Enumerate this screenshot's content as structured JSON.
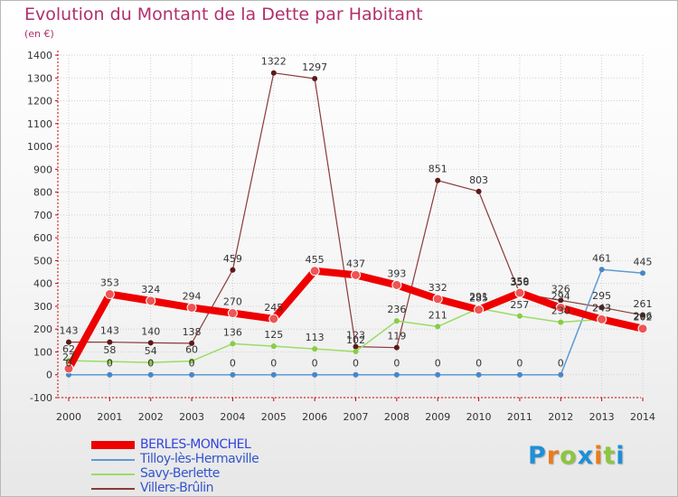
{
  "title": "Evolution du Montant de la Dette par Habitant",
  "subtitle": "(en €)",
  "logo": {
    "text": "Proxiti",
    "letter_colors": [
      "#1f8fd6",
      "#e87c1e",
      "#8cc63f",
      "#1f8fd6",
      "#e87c1e",
      "#8cc63f",
      "#1f8fd6"
    ]
  },
  "chart_data": {
    "type": "line",
    "title": "Evolution du Montant de la Dette par Habitant",
    "ylabel": "(en €)",
    "xlabel": "",
    "x": [
      "2000",
      "2001",
      "2002",
      "2003",
      "2004",
      "2005",
      "2006",
      "2007",
      "2008",
      "2009",
      "2010",
      "2011",
      "2012",
      "2013",
      "2014"
    ],
    "ylim": [
      -100,
      1400
    ],
    "yticks": [
      "-100",
      "0",
      "100",
      "200",
      "300",
      "400",
      "500",
      "600",
      "700",
      "800",
      "900",
      "1000",
      "1100",
      "1200",
      "1300",
      "1400"
    ],
    "grid": true,
    "legend_position": "bottom-left",
    "series": [
      {
        "name": "BERLES-MONCHEL",
        "color": "#ee0000",
        "values": [
          27,
          353,
          324,
          294,
          270,
          245,
          455,
          437,
          393,
          332,
          285,
          359,
          294,
          243,
          202
        ],
        "labels": [
          "27",
          "353",
          "324",
          "294",
          "270",
          "245",
          "455",
          "437",
          "393",
          "332",
          "285",
          "359",
          "294",
          "243",
          "202"
        ]
      },
      {
        "name": "Tilloy-lès-Hermaville",
        "color": "#5b9bd5",
        "values": [
          0,
          0,
          0,
          0,
          0,
          0,
          0,
          0,
          0,
          0,
          0,
          0,
          0,
          461,
          445
        ],
        "labels": [
          "0",
          "0",
          "0",
          "0",
          "0",
          "0",
          "0",
          "0",
          "0",
          "0",
          "0",
          "0",
          "0",
          "461",
          "445"
        ]
      },
      {
        "name": "Savy-Berlette",
        "color": "#99dd66",
        "values": [
          62,
          58,
          54,
          60,
          136,
          125,
          113,
          102,
          236,
          211,
          291,
          257,
          230,
          243,
          206
        ],
        "labels": [
          "62",
          "58",
          "54",
          "60",
          "136",
          "125",
          "113",
          "102",
          "236",
          "211",
          "291",
          "257",
          "230",
          "243",
          "206"
        ]
      },
      {
        "name": "Villers-Brûlin",
        "color": "#8a3a3a",
        "values": [
          143,
          143,
          140,
          138,
          459,
          1322,
          1297,
          123,
          119,
          851,
          803,
          356,
          326,
          295,
          261
        ],
        "labels": [
          "143",
          "143",
          "140",
          "138",
          "459",
          "1322",
          "1297",
          "123",
          "119",
          "851",
          "803",
          "356",
          "326",
          "295",
          "261"
        ]
      }
    ]
  }
}
